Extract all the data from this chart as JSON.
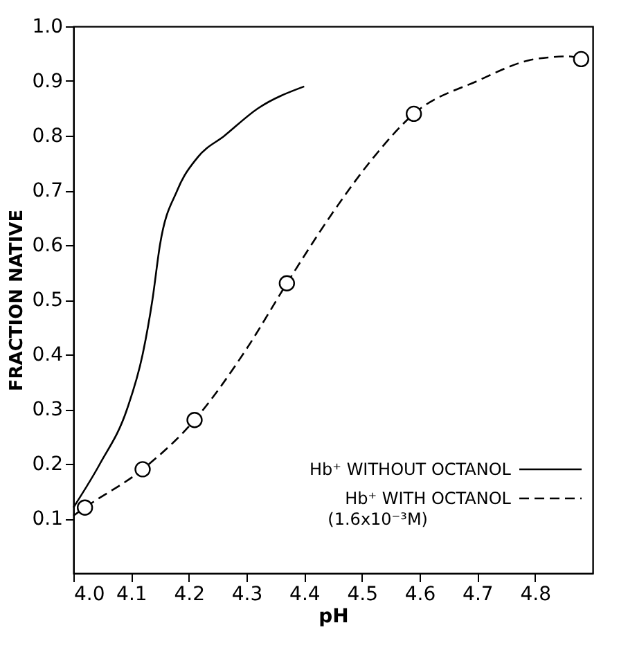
{
  "chart_data": {
    "type": "line",
    "xlabel": "pH",
    "ylabel": "FRACTION NATIVE",
    "xlim": [
      4.0,
      4.9
    ],
    "ylim": [
      0,
      1.0
    ],
    "xticks": [
      {
        "value": 4.0,
        "label": "4.0"
      },
      4.1,
      4.2,
      4.3,
      4.4,
      4.5,
      4.6,
      4.7,
      4.8
    ],
    "yticks": [
      {
        "value": 0.1,
        "label": "0.1"
      },
      0.2,
      0.3,
      0.4,
      0.5,
      0.6,
      0.7,
      0.8,
      0.9,
      {
        "value": 1.0,
        "label": "1.0"
      }
    ],
    "grid": false,
    "legend": "bottom right",
    "series": [
      {
        "name": "Hb⁺ WITHOUT OCTANOL",
        "color": "#000000",
        "line_style": "solid",
        "marker": "none",
        "x": [
          4.0,
          4.046,
          4.093,
          4.12,
          4.137,
          4.15,
          4.18,
          4.215,
          4.262,
          4.32,
          4.4
        ],
        "values": [
          0.12,
          0.2,
          0.3,
          0.4,
          0.5,
          0.6,
          0.7,
          0.76,
          0.8,
          0.85,
          0.89
        ]
      },
      {
        "name": "Hb⁺ WITH OCTANOL (1.6x10⁻³M)",
        "color": "#000000",
        "line_style": "dashed",
        "marker": "none",
        "x": [
          4.0,
          4.02,
          4.12,
          4.21,
          4.3,
          4.37,
          4.45,
          4.52,
          4.59,
          4.7,
          4.8,
          4.86,
          4.88
        ],
        "values": [
          0.105,
          0.12,
          0.19,
          0.28,
          0.41,
          0.53,
          0.66,
          0.76,
          0.84,
          0.9,
          0.94,
          0.945,
          0.94
        ]
      },
      {
        "color": "#000000",
        "type": "scatter",
        "marker": "circle",
        "x": [
          4.02,
          4.12,
          4.21,
          4.37,
          4.59,
          4.88
        ],
        "values": [
          0.12,
          0.19,
          0.28,
          0.53,
          0.84,
          0.94
        ]
      }
    ]
  }
}
